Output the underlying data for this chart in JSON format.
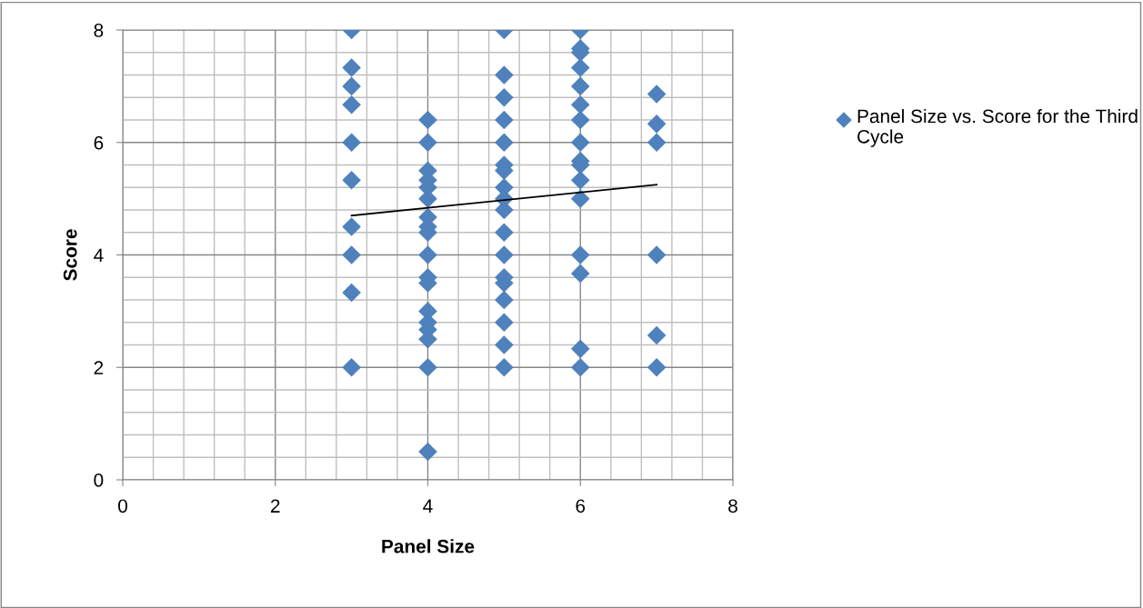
{
  "chart_data": {
    "type": "scatter",
    "xlabel": "Panel Size",
    "ylabel": "Score",
    "xlim": [
      0,
      8
    ],
    "ylim": [
      0,
      8
    ],
    "xticks": [
      0,
      {
        "value": 0.4,
        "label": null
      },
      {
        "value": 0.8,
        "label": null
      },
      {
        "value": 1.2,
        "label": null
      },
      {
        "value": 1.6,
        "label": null
      },
      2,
      {
        "value": 2.4,
        "label": null
      },
      {
        "value": 2.8,
        "label": null
      },
      {
        "value": 3.2,
        "label": null
      },
      {
        "value": 3.6,
        "label": null
      },
      4,
      {
        "value": 4.4,
        "label": null
      },
      {
        "value": 4.8,
        "label": null
      },
      {
        "value": 5.2,
        "label": null
      },
      {
        "value": 5.6,
        "label": null
      },
      6,
      {
        "value": 6.4,
        "label": null
      },
      {
        "value": 6.8,
        "label": null
      },
      {
        "value": 7.2,
        "label": null
      },
      {
        "value": 7.6,
        "label": null
      },
      8
    ],
    "yticks": [
      0,
      {
        "value": 0.4,
        "label": null
      },
      {
        "value": 0.8,
        "label": null
      },
      {
        "value": 1.2,
        "label": null
      },
      {
        "value": 1.6,
        "label": null
      },
      2,
      {
        "value": 2.4,
        "label": null
      },
      {
        "value": 2.8,
        "label": null
      },
      {
        "value": 3.2,
        "label": null
      },
      {
        "value": 3.6,
        "label": null
      },
      4,
      {
        "value": 4.4,
        "label": null
      },
      {
        "value": 4.8,
        "label": null
      },
      {
        "value": 5.2,
        "label": null
      },
      {
        "value": 5.6,
        "label": null
      },
      6,
      {
        "value": 6.4,
        "label": null
      },
      {
        "value": 6.8,
        "label": null
      },
      {
        "value": 7.2,
        "label": null
      },
      {
        "value": 7.6,
        "label": null
      },
      8
    ],
    "grid": true,
    "legend": "right",
    "marker": "diamond",
    "series": [
      {
        "name": "Panel Size vs. Score for the Third Cycle",
        "color": "#4f81bd",
        "x": [
          3,
          3,
          3,
          3,
          3,
          3,
          3,
          3,
          3,
          3,
          4,
          4,
          4,
          4,
          4,
          4,
          4,
          4,
          4,
          4,
          4,
          4,
          4,
          4,
          4,
          4,
          4,
          4,
          5,
          5,
          5,
          5,
          5,
          5,
          5,
          5,
          5,
          5,
          5,
          5,
          5,
          5,
          5,
          5,
          5,
          5,
          6,
          6,
          6,
          6,
          6,
          6,
          6,
          6,
          6,
          6,
          6,
          6,
          6,
          6,
          6,
          6,
          7,
          7,
          7,
          7,
          7,
          7
        ],
        "values": [
          8,
          7.33,
          7,
          6.67,
          6,
          5.33,
          4.5,
          4,
          3.33,
          2,
          6.4,
          6,
          5.5,
          5.33,
          5.2,
          5,
          4.67,
          4.5,
          4.4,
          4,
          3.6,
          3.5,
          3,
          2.8,
          2.67,
          2.5,
          2,
          0.5,
          8,
          7.2,
          6.8,
          6.4,
          6,
          5.6,
          5.5,
          5.2,
          5,
          4.8,
          4.4,
          4,
          3.6,
          3.5,
          3.2,
          2.8,
          2.4,
          2,
          8,
          7.67,
          7.6,
          7.33,
          7,
          6.67,
          6.4,
          6,
          5.67,
          5.6,
          5.33,
          5,
          4,
          3.67,
          2.33,
          2,
          6.86,
          6.33,
          6,
          4,
          2.57,
          2
        ]
      },
      {
        "type": "line",
        "color": "#000000",
        "marker": "none",
        "x": [
          3,
          7
        ],
        "values": [
          4.7,
          5.25
        ]
      }
    ]
  }
}
